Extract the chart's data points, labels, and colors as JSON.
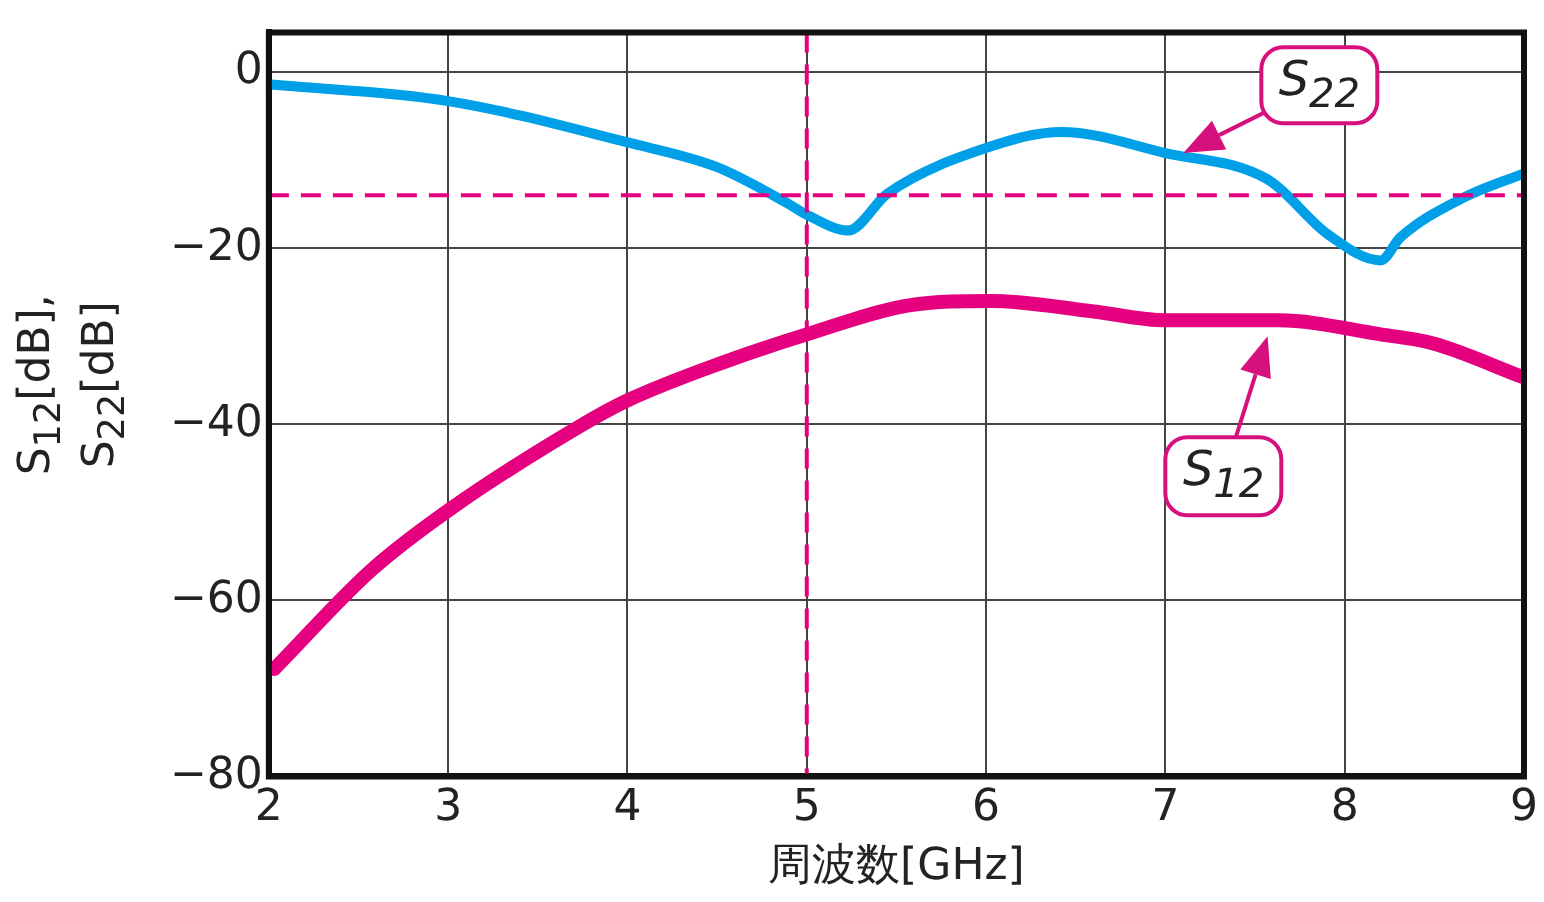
{
  "chart_data": {
    "type": "line",
    "xlabel": "周波数[GHz]",
    "ylabel": "S$_{12}$[dB], S$_{22}$[dB]",
    "xlim": [
      2,
      9
    ],
    "xticks": [
      2,
      3,
      4,
      5,
      6,
      7,
      8,
      9
    ],
    "ylim": [
      -80,
      4.5
    ],
    "yticks": [
      {
        "value": 0,
        "label": "0"
      },
      {
        "value": -20,
        "label": "−20"
      },
      {
        "value": -40,
        "label": "−40"
      },
      {
        "value": -60,
        "label": "−60"
      },
      {
        "value": -80,
        "label": "−80"
      }
    ],
    "grid": true,
    "legend": false,
    "marker": "none",
    "line_style": "solid",
    "series": [
      {
        "color": "#00a0e9",
        "x": [
          2,
          3,
          4,
          4.5,
          4.9,
          5.0,
          5.23,
          5.45,
          6.02,
          6.42,
          7.0,
          7.57,
          7.91,
          8.2,
          8.31,
          8.66,
          9
        ],
        "values": [
          -1.4,
          -3.3,
          -8,
          -10.8,
          -15,
          -16.2,
          -18,
          -13.8,
          -8.5,
          -6.8,
          -9.2,
          -12.2,
          -18.5,
          -21.4,
          -18.8,
          -14.3,
          -11.5
        ]
      },
      {
        "color": "#e4007f",
        "x": [
          2.03,
          2.57,
          3,
          3.72,
          4,
          4.53,
          5.0,
          5.57,
          6.03,
          6.6,
          7.0,
          7.63,
          8.2,
          8.49,
          9
        ],
        "values": [
          -67.8,
          -56.6,
          -49.8,
          -40.4,
          -37.3,
          -33,
          -29.8,
          -26.5,
          -26,
          -27.2,
          -28.2,
          -28.2,
          -29.8,
          -30.8,
          -34.7
        ]
      }
    ],
    "ref_lines": [
      {
        "axis": "x",
        "value": 5,
        "color": "#e4007f",
        "line_style": "dashed"
      },
      {
        "axis": "y",
        "value": -14,
        "color": "#e4007f",
        "line_style": "dashed"
      }
    ],
    "annotations": [
      {
        "text": "S$_{22}$",
        "x": 7.1,
        "y": -9.2
      },
      {
        "text": "S$_{12}$",
        "x": 7.57,
        "y": -30
      }
    ]
  }
}
